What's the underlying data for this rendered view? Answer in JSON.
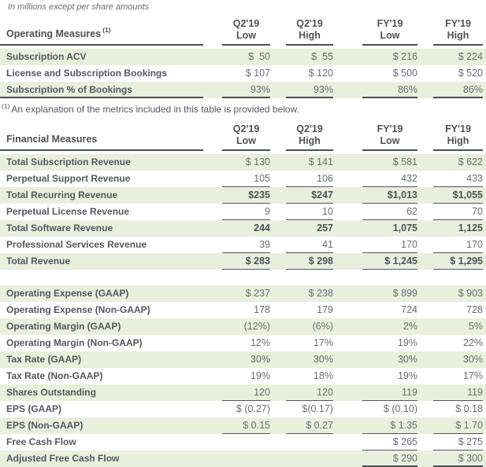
{
  "note": "In millions except per share amounts",
  "columns": [
    {
      "period": "Q2'19",
      "bound": "Low"
    },
    {
      "period": "Q2'19",
      "bound": "High"
    },
    {
      "period": "FY'19",
      "bound": "Low"
    },
    {
      "period": "FY'19",
      "bound": "High"
    }
  ],
  "colors": {
    "row_band": "#e9efdc",
    "rule_dark": "#4c4d4f",
    "rule_mid": "#55565a",
    "label_text": "#55575b",
    "number_text": "#6b6d70",
    "background": "#ffffff"
  },
  "operating": {
    "title": "Operating Measures",
    "title_superscript": "(1)",
    "rows": [
      {
        "label": "Subscription ACV",
        "values": [
          "$  50",
          "$  55",
          "$ 216",
          "$ 224"
        ],
        "shaded": true,
        "bold": false,
        "underline": "none"
      },
      {
        "label": "License and Subscription Bookings",
        "values": [
          "$ 107",
          "$ 120",
          "$ 500",
          "$ 520"
        ],
        "shaded": false,
        "bold": false,
        "underline": "none"
      },
      {
        "label": "Subscription % of Bookings",
        "values": [
          "93%",
          "93%",
          "86%",
          "86%"
        ],
        "shaded": true,
        "bold": false,
        "underline": "all",
        "label_underline": true,
        "end": true
      }
    ]
  },
  "footnote": {
    "superscript": "(1)",
    "text": "An explanation of the metrics included in this table is provided below."
  },
  "financial": {
    "title": "Financial Measures",
    "title_superscript": "",
    "rows": [
      {
        "label": "Total Subscription Revenue",
        "values": [
          "$ 130",
          "$ 141",
          "$ 581",
          "$ 622"
        ],
        "shaded": true,
        "bold": false,
        "underline": "none"
      },
      {
        "label": "Perpetual Support Revenue",
        "values": [
          "105",
          "106",
          "432",
          "433"
        ],
        "shaded": false,
        "bold": false,
        "underline": "all"
      },
      {
        "label": "Total Recurring Revenue",
        "values": [
          "$235",
          "$247",
          "$1,013",
          "$1,055"
        ],
        "shaded": true,
        "bold": true,
        "underline": "all"
      },
      {
        "label": "Perpetual License Revenue",
        "values": [
          "9",
          "10",
          "62",
          "70"
        ],
        "shaded": false,
        "bold": false,
        "underline": "all"
      },
      {
        "label": "Total Software Revenue",
        "values": [
          "244",
          "257",
          "1,075",
          "1,125"
        ],
        "shaded": true,
        "bold": true,
        "underline": "none"
      },
      {
        "label": "Professional Services Revenue",
        "values": [
          "39",
          "41",
          "170",
          "170"
        ],
        "shaded": false,
        "bold": false,
        "underline": "all"
      },
      {
        "label": "Total Revenue",
        "values": [
          "$ 283",
          "$ 298",
          "$ 1,245",
          "$ 1,295"
        ],
        "shaded": true,
        "bold": true,
        "underline": "all"
      },
      {
        "spacer": true
      },
      {
        "label": "Operating Expense (GAAP)",
        "values": [
          "$ 237",
          "$ 238",
          "$ 899",
          "$ 903"
        ],
        "shaded": true,
        "bold": false,
        "underline": "none"
      },
      {
        "label": "Operating Expense (Non-GAAP)",
        "values": [
          "178",
          "179",
          "724",
          "728"
        ],
        "shaded": false,
        "bold": false,
        "underline": "none"
      },
      {
        "label": "Operating Margin (GAAP)",
        "values": [
          "(12%)",
          "(6%)",
          "2%",
          "5%"
        ],
        "shaded": true,
        "bold": false,
        "underline": "none"
      },
      {
        "label": "Operating Margin (Non-GAAP)",
        "values": [
          "12%",
          "17%",
          "19%",
          "22%"
        ],
        "shaded": false,
        "bold": false,
        "underline": "none"
      },
      {
        "label": "Tax Rate (GAAP)",
        "values": [
          "30%",
          "30%",
          "30%",
          "30%"
        ],
        "shaded": true,
        "bold": false,
        "underline": "none"
      },
      {
        "label": "Tax Rate (Non-GAAP)",
        "values": [
          "19%",
          "18%",
          "19%",
          "17%"
        ],
        "shaded": false,
        "bold": false,
        "underline": "none"
      },
      {
        "label": "Shares Outstanding",
        "values": [
          "120",
          "120",
          "119",
          "119"
        ],
        "shaded": true,
        "bold": false,
        "underline": "all"
      },
      {
        "label": "EPS (GAAP)",
        "values": [
          "$ (0.27)",
          "$(0.17)",
          "$ (0.10)",
          "$ 0.18"
        ],
        "shaded": false,
        "bold": false,
        "underline": "none"
      },
      {
        "label": "EPS (Non-GAAP)",
        "values": [
          "$ 0.15",
          "$ 0.27",
          "$ 1.35",
          "$ 1.70"
        ],
        "shaded": true,
        "bold": false,
        "underline": "all"
      },
      {
        "label": "Free Cash Flow",
        "values": [
          "",
          "",
          "$ 265",
          "$ 275"
        ],
        "shaded": false,
        "bold": false,
        "underline": "fy"
      },
      {
        "label": "Adjusted Free Cash Flow",
        "values": [
          "",
          "",
          "$ 290",
          "$ 300"
        ],
        "shaded": true,
        "bold": false,
        "underline": "fy",
        "end": true
      }
    ]
  }
}
